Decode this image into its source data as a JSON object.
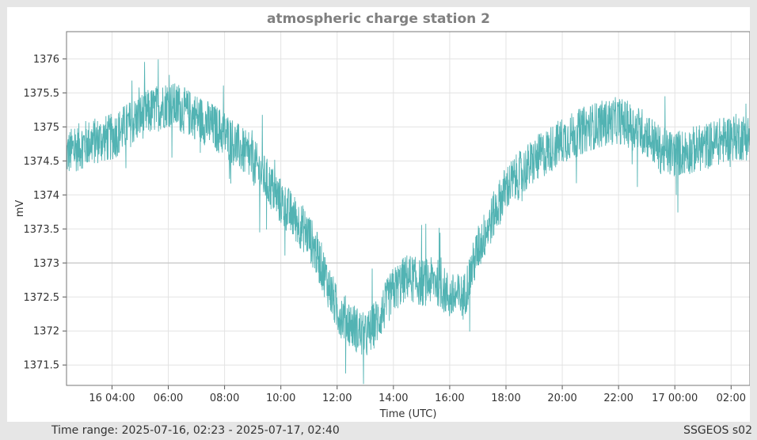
{
  "chart_data": {
    "type": "line",
    "title": "atmospheric charge station 2",
    "xlabel": "Time (UTC)",
    "ylabel": "mV",
    "x_range": [
      "2025-07-16T02:23",
      "2025-07-17T02:40"
    ],
    "ylim": [
      1371.2,
      1376.4
    ],
    "x_ticks": [
      {
        "t": "2025-07-16T04:00",
        "label": "16 04:00"
      },
      {
        "t": "2025-07-16T06:00",
        "label": "06:00"
      },
      {
        "t": "2025-07-16T08:00",
        "label": "08:00"
      },
      {
        "t": "2025-07-16T10:00",
        "label": "10:00"
      },
      {
        "t": "2025-07-16T12:00",
        "label": "12:00"
      },
      {
        "t": "2025-07-16T14:00",
        "label": "14:00"
      },
      {
        "t": "2025-07-16T16:00",
        "label": "16:00"
      },
      {
        "t": "2025-07-16T18:00",
        "label": "18:00"
      },
      {
        "t": "2025-07-16T20:00",
        "label": "20:00"
      },
      {
        "t": "2025-07-16T22:00",
        "label": "22:00"
      },
      {
        "t": "2025-07-17T00:00",
        "label": "17 00:00"
      },
      {
        "t": "2025-07-17T02:00",
        "label": "02:00"
      }
    ],
    "y_ticks": [
      1376,
      1375.5,
      1375,
      1374.5,
      1374,
      1373.5,
      1373,
      1372.5,
      1372,
      1371.5
    ],
    "reference_line": 1373,
    "grid": true,
    "series": [
      {
        "color": "#52b3b3",
        "trend": [
          {
            "t": "2025-07-16T02:23",
            "y": 1374.6
          },
          {
            "t": "2025-07-16T03:00",
            "y": 1374.75
          },
          {
            "t": "2025-07-16T04:00",
            "y": 1374.85
          },
          {
            "t": "2025-07-16T05:00",
            "y": 1375.15
          },
          {
            "t": "2025-07-16T06:00",
            "y": 1375.35
          },
          {
            "t": "2025-07-16T07:00",
            "y": 1375.15
          },
          {
            "t": "2025-07-16T08:00",
            "y": 1374.9
          },
          {
            "t": "2025-07-16T09:00",
            "y": 1374.5
          },
          {
            "t": "2025-07-16T10:00",
            "y": 1373.9
          },
          {
            "t": "2025-07-16T11:00",
            "y": 1373.4
          },
          {
            "t": "2025-07-16T11:30",
            "y": 1372.9
          },
          {
            "t": "2025-07-16T12:00",
            "y": 1372.3
          },
          {
            "t": "2025-07-16T13:00",
            "y": 1371.9
          },
          {
            "t": "2025-07-16T13:30",
            "y": 1372.2
          },
          {
            "t": "2025-07-16T14:00",
            "y": 1372.6
          },
          {
            "t": "2025-07-16T14:30",
            "y": 1372.8
          },
          {
            "t": "2025-07-16T15:00",
            "y": 1372.7
          },
          {
            "t": "2025-07-16T15:30",
            "y": 1372.75
          },
          {
            "t": "2025-07-16T16:00",
            "y": 1372.5
          },
          {
            "t": "2025-07-16T16:30",
            "y": 1372.5
          },
          {
            "t": "2025-07-16T17:00",
            "y": 1373.2
          },
          {
            "t": "2025-07-16T18:00",
            "y": 1374.1
          },
          {
            "t": "2025-07-16T19:00",
            "y": 1374.5
          },
          {
            "t": "2025-07-16T20:00",
            "y": 1374.8
          },
          {
            "t": "2025-07-16T21:00",
            "y": 1375.0
          },
          {
            "t": "2025-07-16T22:00",
            "y": 1375.1
          },
          {
            "t": "2025-07-16T23:00",
            "y": 1374.9
          },
          {
            "t": "2025-07-16T23:30",
            "y": 1374.65
          },
          {
            "t": "2025-07-17T00:00",
            "y": 1374.6
          },
          {
            "t": "2025-07-17T01:00",
            "y": 1374.7
          },
          {
            "t": "2025-07-17T02:00",
            "y": 1374.85
          },
          {
            "t": "2025-07-17T02:40",
            "y": 1374.85
          }
        ],
        "noise_amplitude_mv": 0.35
      }
    ]
  },
  "footer": {
    "time_range_label": "Time range:",
    "time_range_value": "2025-07-16, 02:23 - 2025-07-17, 02:40",
    "station": "SSGEOS s02"
  }
}
